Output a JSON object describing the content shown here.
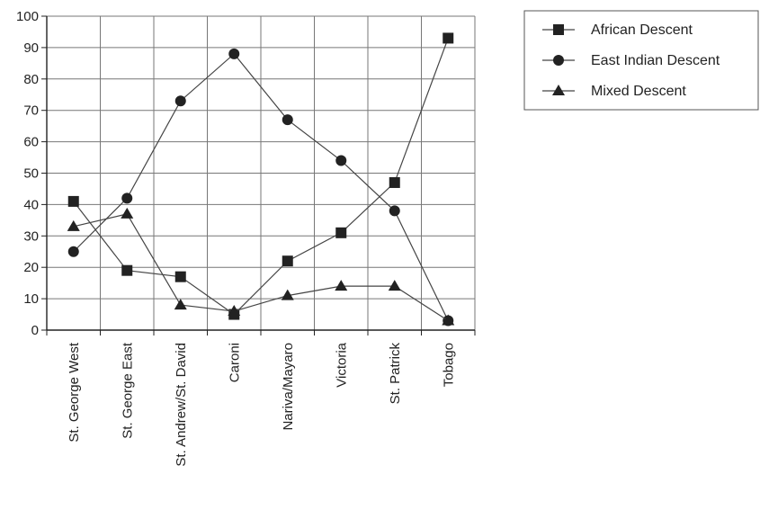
{
  "chart_data": {
    "type": "line",
    "categories": [
      "St. George West",
      "St. George East",
      "St. Andrew/St. David",
      "Caroni",
      "Nariva/Mayaro",
      "Victoria",
      "St. Patrick",
      "Tobago"
    ],
    "ylim": [
      0,
      100
    ],
    "yticks": [
      0,
      10,
      20,
      30,
      40,
      50,
      60,
      70,
      80,
      90,
      100
    ],
    "grid": true,
    "legend_position": "top-right",
    "title": "",
    "xlabel": "",
    "ylabel": "",
    "series": [
      {
        "name": "African Descent",
        "marker": "square",
        "values": [
          41,
          19,
          17,
          5,
          22,
          31,
          47,
          93
        ]
      },
      {
        "name": "East Indian Descent",
        "marker": "circle",
        "values": [
          25,
          42,
          73,
          88,
          67,
          54,
          38,
          3
        ]
      },
      {
        "name": "Mixed Descent",
        "marker": "triangle",
        "values": [
          33,
          37,
          8,
          6,
          11,
          14,
          14,
          3
        ]
      }
    ],
    "colors": {
      "line": "#444444",
      "marker": "#222222",
      "grid": "#777777",
      "axis": "#222222"
    }
  }
}
